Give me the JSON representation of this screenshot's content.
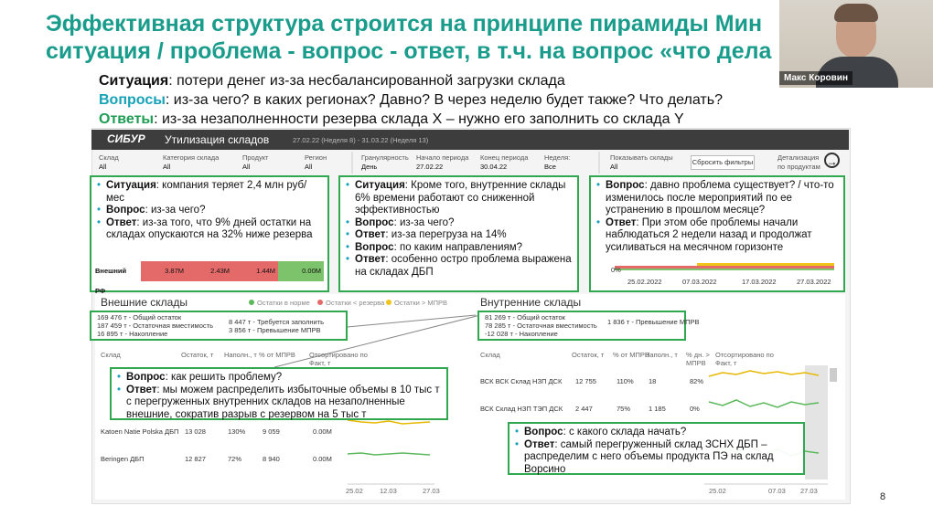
{
  "slide": {
    "title_lines": [
      "Эффективная структура строится на принципе пирамиды Мин",
      "ситуация / проблема - вопрос - ответ, в т.ч. на вопрос «что дела"
    ],
    "presenter": "Макс Коровин",
    "page_number": "8",
    "points": [
      {
        "label": "Ситуация",
        "text": ": потери денег из-за несбалансированной загрузки склада",
        "color": "#111111"
      },
      {
        "label": "Вопросы",
        "text": ": из-за чего? в каких регионах? Давно? В через неделю будет также? Что делать?",
        "color": "#17a2b8"
      },
      {
        "label": "Ответы",
        "text": ": из-за незаполненности резерва склада Х – нужно его заполнить со склада Y",
        "color": "#1f9d55"
      }
    ]
  },
  "dashboard": {
    "brand": "СИБУР",
    "title": "Утилизация складов",
    "period": "27.02.22 (Неделя 8) - 31.03.22 (Неделя 13)",
    "filters": [
      {
        "label": "Склад",
        "value": "All"
      },
      {
        "label": "Категория склада",
        "value": "All"
      },
      {
        "label": "Продукт",
        "value": "All"
      },
      {
        "label": "Регион",
        "value": "All"
      },
      {
        "label": "Гранулярность",
        "value": "День"
      },
      {
        "label": "Начало периода",
        "value": "27.02.22"
      },
      {
        "label": "Конец периода",
        "value": "30.04.22"
      },
      {
        "label": "Неделя:",
        "value": "Все"
      },
      {
        "label": "Показывать склады",
        "value": "All"
      }
    ],
    "reset_button": "Сбросить фильтры",
    "detail": "Детализация по продуктам",
    "callouts": [
      {
        "items": [
          {
            "label": "Ситуация",
            "text": ": компания теряет 2,4 млн руб/мес"
          },
          {
            "label": "Вопрос",
            "text": ": из-за чего?"
          },
          {
            "label": "Ответ",
            "text": ": из-за того, что 9% дней остатки на складах опускаются на 32% ниже резерва"
          }
        ],
        "row": [
          "Внешний РФ",
          "3.87M",
          "2.43M",
          "1.44M",
          "0.00M"
        ]
      },
      {
        "items": [
          {
            "label": "Ситуация",
            "text": ": Кроме того, внутренние склады 6% времени работают со сниженной эффективностью"
          },
          {
            "label": "Вопрос",
            "text": ": из-за чего?"
          },
          {
            "label": "Ответ",
            "text": ": из-за перегруза на 14%"
          },
          {
            "label": "Вопрос",
            "text": ": по каким направлениям?"
          },
          {
            "label": "Ответ",
            "text": ": особенно остро проблема выражена на складах ДБП"
          }
        ]
      },
      {
        "items": [
          {
            "label": "Вопрос",
            "text": ": давно проблема существует? / что-то изменилось после мероприятий по ее устранению в прошлом месяце?"
          },
          {
            "label": "Ответ",
            "text": ": При этом обе проблемы начали наблюдаться 2 недели назад и продолжат усиливаться на месячном горизонте"
          }
        ],
        "axis": [
          "0%",
          "25.02.2022",
          "07.03.2022",
          "17.03.2022",
          "27.03.2022"
        ]
      },
      {
        "items": [
          {
            "label": "Вопрос",
            "text": ": как решить проблему?"
          },
          {
            "label": "Ответ",
            "text": ": мы можем распределить избыточные объемы в 10 тыс т с перегруженных внутренних складов на незаполненные внешние, сократив разрыв с резервом на 5 тыс т"
          }
        ]
      },
      {
        "items": [
          {
            "label": "Вопрос",
            "text": ": с какого склада начать?"
          },
          {
            "label": "Ответ",
            "text": ": самый перегруженный склад ЗСНХ ДБП – распределим с него объемы продукта ПЭ на склад Ворсино"
          }
        ]
      }
    ],
    "external": {
      "title": "Внешние склады",
      "legend": [
        "Остатки в норме",
        "Остатки < резерва",
        "Остатки > МПРВ"
      ],
      "summary_left": [
        "169 476 т - Общий остаток",
        "187 459 т - Остаточная вместимость",
        "16 895 т - Накопление"
      ],
      "summary_right": [
        "8 447 т - Требуется заполнить",
        "3 856 т - Превышение МПРВ"
      ],
      "headers": [
        "Склад",
        "Остаток, т",
        "Наполн., т",
        "% от МПРВ",
        "Отсортировано по Факт, т"
      ],
      "rows": [
        [
          "Katoen Natie Polska ДБП",
          "13 028",
          "130%",
          "9 059",
          "0.00M"
        ],
        [
          "Beringen ДБП",
          "12 827",
          "72%",
          "8 940",
          "0.00M"
        ]
      ],
      "axis": [
        "25.02",
        "12.03",
        "27.03"
      ]
    },
    "internal": {
      "title": "Внутренние склады",
      "summary_left": [
        "81 269 т - Общий остаток",
        "78 285 т - Остаточная вместимость",
        "-12 028 т - Накопление"
      ],
      "summary_right": [
        "1 836 т - Превышение МПРВ"
      ],
      "headers": [
        "Склад",
        "Остаток, т",
        "% от МПРВ",
        "Наполн., т",
        "% дн. > МПРВ",
        "Отсортировано по Факт, т"
      ],
      "rows": [
        [
          "ВСК ВСК Склад НЗП ДСК",
          "12 755",
          "110%",
          "18",
          "82%"
        ],
        [
          "ВСК Склад НЗП ТЭП ДСК",
          "2 447",
          "75%",
          "1 185",
          "0%"
        ]
      ],
      "axis": [
        "25.02",
        "07.03",
        "27.03"
      ]
    }
  }
}
